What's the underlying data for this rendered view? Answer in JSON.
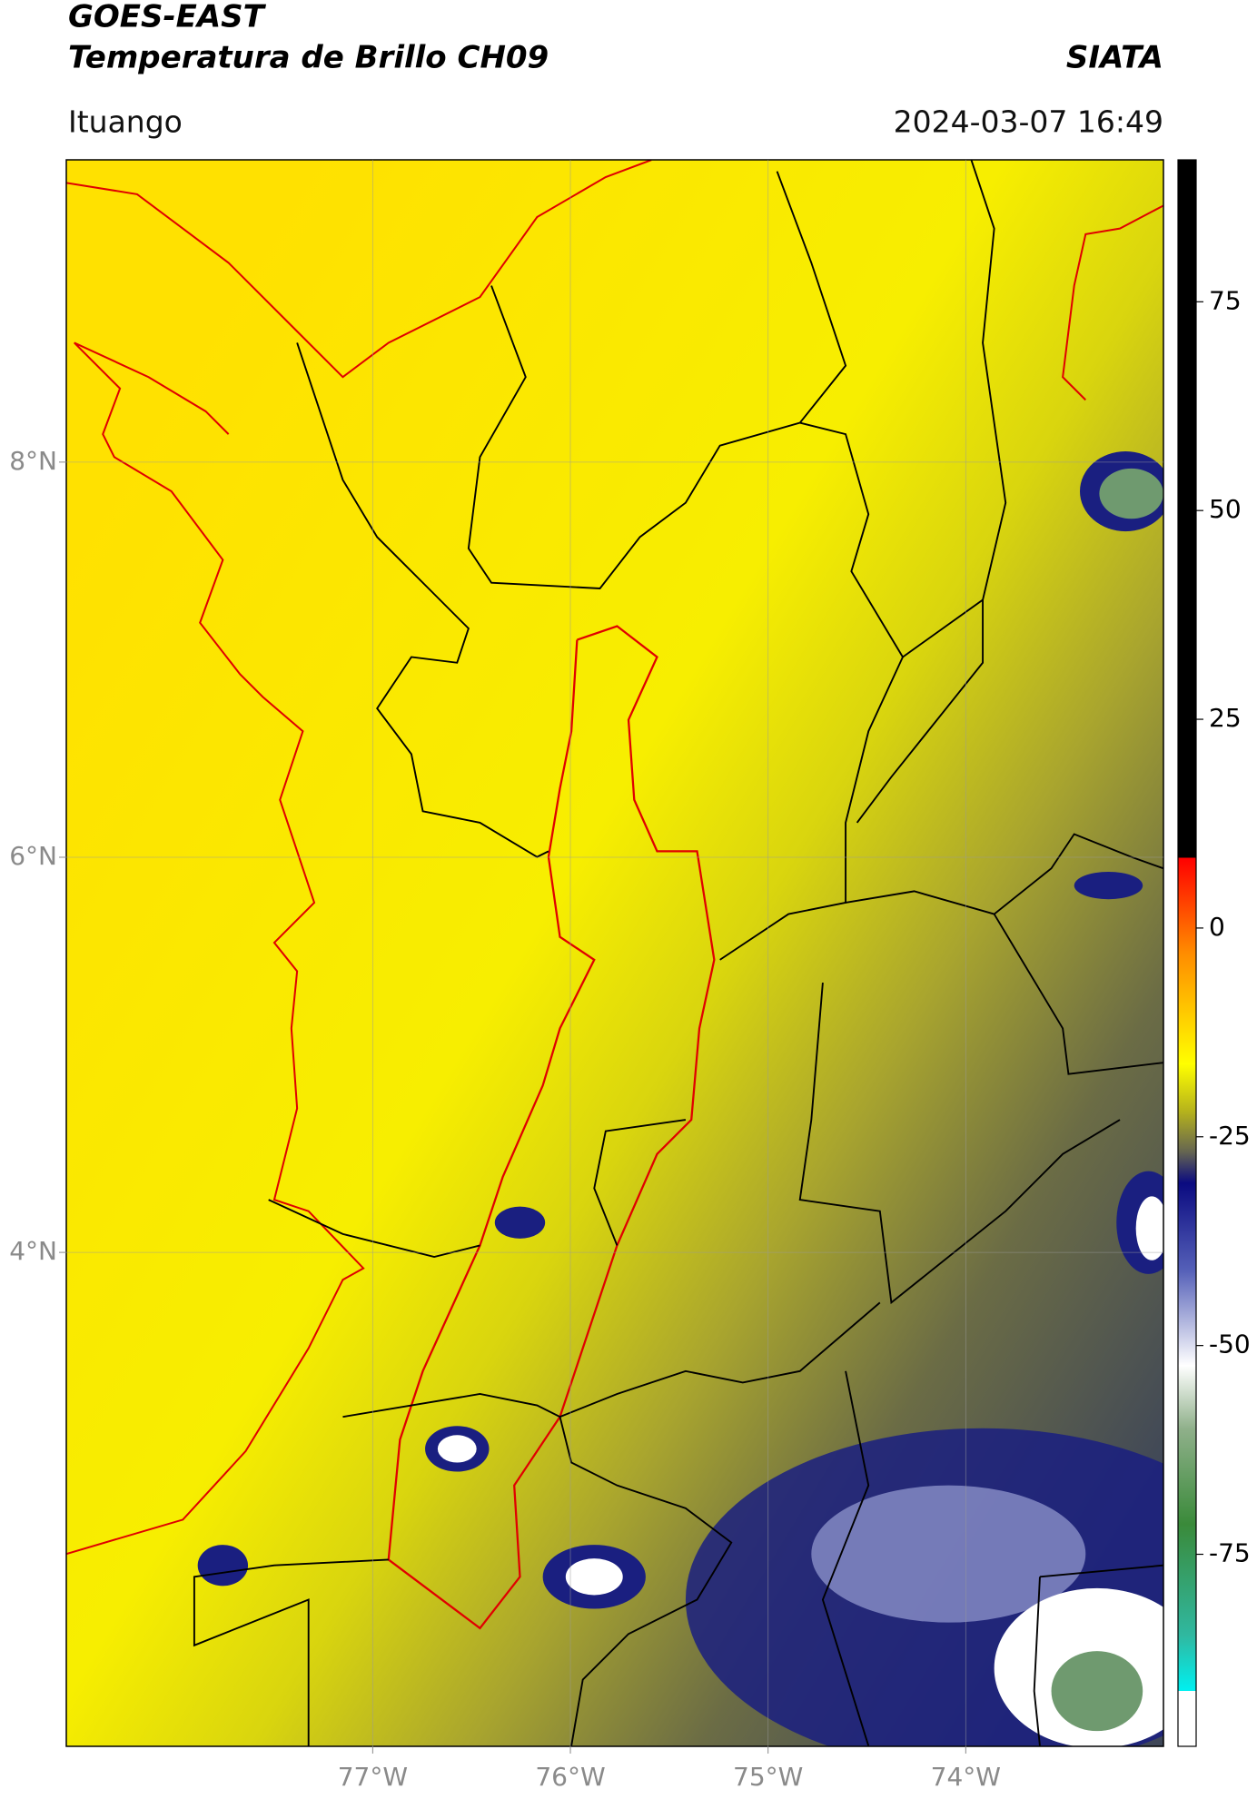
{
  "header": {
    "title": "GOES-EAST",
    "subtitle": "Temperatura de Brillo CH09",
    "source": "SIATA",
    "location": "Ituango",
    "timestamp": "2024-03-07 16:49"
  },
  "map": {
    "xlim": [
      -78.55,
      -73.0
    ],
    "ylim": [
      1.5,
      9.53
    ],
    "xticks": [
      {
        "value": -77,
        "label": "77°W"
      },
      {
        "value": -76,
        "label": "76°W"
      },
      {
        "value": -75,
        "label": "75°W"
      },
      {
        "value": -74,
        "label": "74°W"
      }
    ],
    "yticks": [
      {
        "value": 8,
        "label": "8°N"
      },
      {
        "value": 6,
        "label": "6°N"
      },
      {
        "value": 4,
        "label": "4°N"
      }
    ],
    "grid": true
  },
  "colorbar": {
    "lim": [
      -98,
      92
    ],
    "ticks": [
      75,
      50,
      25,
      0,
      -25,
      -50,
      -75
    ]
  }
}
